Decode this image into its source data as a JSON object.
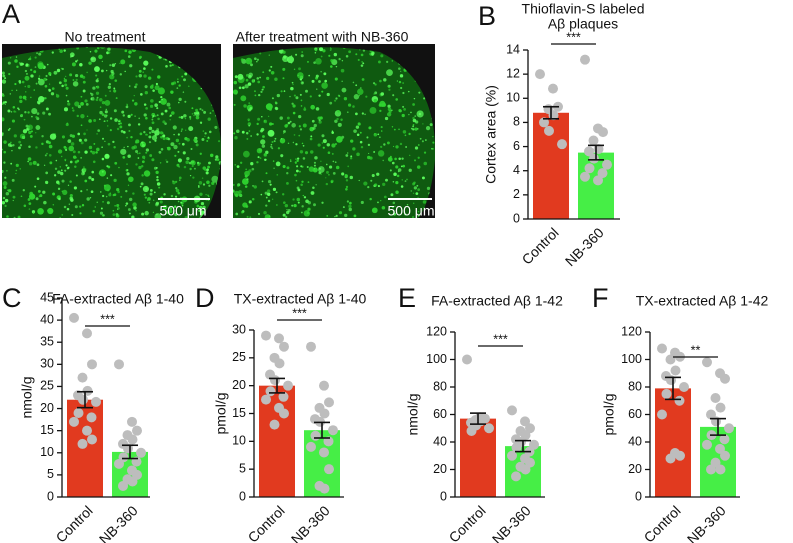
{
  "panel_a": {
    "label": "A",
    "images": [
      {
        "caption": "No treatment",
        "scale_bar": "500 μm"
      },
      {
        "caption": "After treatment with NB-360",
        "scale_bar": "500 μm"
      }
    ]
  },
  "chart_data": [
    {
      "type": "bar",
      "panel": "B",
      "title": [
        "Thioflavin-S labeled",
        "Aβ plaques"
      ],
      "y_label": "Cortex area (%)",
      "categories": [
        "Control",
        "NB-360"
      ],
      "values": [
        8.8,
        5.5
      ],
      "errors": [
        0.5,
        0.6
      ],
      "colors": [
        "#e13a1f",
        "#46ee46"
      ],
      "points": [
        [
          12.0,
          10.8,
          9.3,
          9.1,
          8.6,
          8.0,
          7.3,
          6.2
        ],
        [
          13.2,
          7.5,
          7.2,
          6.5,
          5.8,
          5.6,
          5.0,
          4.5,
          4.2,
          3.8,
          3.5,
          3.2
        ]
      ],
      "significance": "***",
      "ylim": [
        0,
        14
      ],
      "yticks": [
        0,
        2,
        4,
        6,
        8,
        10,
        12,
        14
      ]
    },
    {
      "type": "bar",
      "panel": "C",
      "title": "FA-extracted Aβ 1-40",
      "y_label": "nmol/g",
      "categories": [
        "Control",
        "NB-360"
      ],
      "values": [
        22,
        10.2
      ],
      "errors": [
        1.8,
        1.5
      ],
      "colors": [
        "#e13a1f",
        "#46ee46"
      ],
      "points": [
        [
          40.5,
          37,
          30,
          27,
          24,
          23,
          22,
          21.5,
          19,
          18,
          17,
          15,
          13,
          12
        ],
        [
          30,
          17,
          15,
          14,
          13,
          12,
          11,
          10,
          9,
          8,
          7.5,
          6,
          5,
          4,
          3.5,
          2.5
        ]
      ],
      "significance": "***",
      "ylim": [
        0,
        45
      ],
      "yticks": [
        0,
        5,
        10,
        15,
        20,
        25,
        30,
        35,
        40,
        45
      ]
    },
    {
      "type": "bar",
      "panel": "D",
      "title": "TX-extracted Aβ 1-40",
      "y_label": "pmol/g",
      "categories": [
        "Control",
        "NB-360"
      ],
      "values": [
        20,
        12
      ],
      "errors": [
        1.3,
        1.4
      ],
      "colors": [
        "#e13a1f",
        "#46ee46"
      ],
      "points": [
        [
          29,
          28.5,
          27,
          25,
          24,
          22,
          21,
          20,
          19,
          18,
          17.5,
          16,
          15,
          13
        ],
        [
          27,
          20,
          17,
          16,
          15,
          14,
          13.5,
          12,
          11,
          10,
          9,
          8,
          5,
          2,
          1.5
        ]
      ],
      "significance": "***",
      "ylim": [
        0,
        30
      ],
      "yticks": [
        0,
        5,
        10,
        15,
        20,
        25,
        30
      ]
    },
    {
      "type": "bar",
      "panel": "E",
      "title": "FA-extracted Aβ 1-42",
      "y_label": "nmol/g",
      "categories": [
        "Control",
        "NB-360"
      ],
      "values": [
        57,
        37
      ],
      "errors": [
        4,
        4
      ],
      "colors": [
        "#e13a1f",
        "#46ee46"
      ],
      "points": [
        [
          100,
          58,
          57,
          56,
          55,
          54,
          52,
          50,
          48
        ],
        [
          63,
          55,
          50,
          48,
          45,
          42,
          40,
          38,
          36,
          33,
          30,
          28,
          25,
          22,
          20,
          15
        ]
      ],
      "significance": "***",
      "ylim": [
        0,
        120
      ],
      "yticks": [
        0,
        20,
        40,
        60,
        80,
        100,
        120
      ]
    },
    {
      "type": "bar",
      "panel": "F",
      "title": "TX-extracted Aβ 1-42",
      "y_label": "pmol/g",
      "categories": [
        "Control",
        "NB-360"
      ],
      "values": [
        79,
        51
      ],
      "errors": [
        8,
        6
      ],
      "colors": [
        "#e13a1f",
        "#46ee46"
      ],
      "points": [
        [
          108,
          105,
          102,
          100,
          92,
          88,
          85,
          80,
          75,
          70,
          60,
          32,
          30,
          28
        ],
        [
          98,
          90,
          86,
          72,
          65,
          60,
          55,
          50,
          45,
          42,
          38,
          35,
          30,
          25,
          20,
          20
        ]
      ],
      "significance": "**",
      "ylim": [
        0,
        120
      ],
      "yticks": [
        0,
        20,
        40,
        60,
        80,
        100,
        120
      ]
    }
  ]
}
